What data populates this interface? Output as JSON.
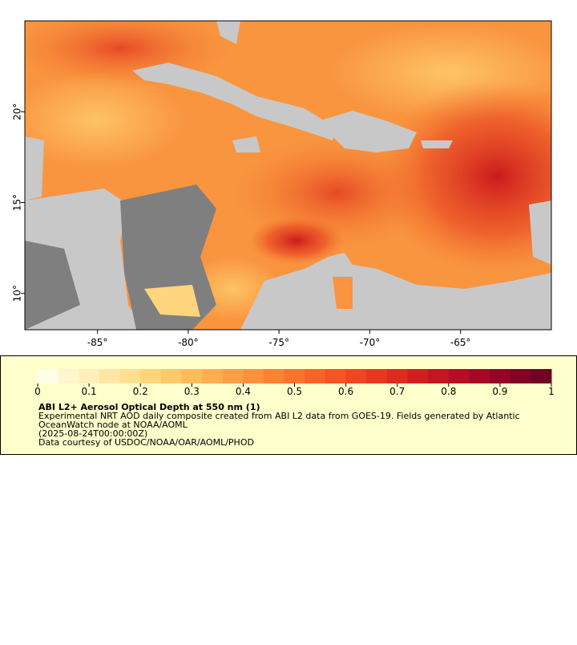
{
  "map": {
    "xlim": [
      -89,
      -60
    ],
    "ylim": [
      8,
      25
    ],
    "xticks": [
      {
        "value": -85,
        "label": "-85°"
      },
      {
        "value": -80,
        "label": "-80°"
      },
      {
        "value": -75,
        "label": "-75°"
      },
      {
        "value": -70,
        "label": "-70°"
      },
      {
        "value": -65,
        "label": "-65°"
      }
    ],
    "yticks": [
      {
        "value": 10,
        "label": "10°"
      },
      {
        "value": 15,
        "label": "15°"
      },
      {
        "value": 20,
        "label": "20°"
      }
    ]
  },
  "colorbar": {
    "range": [
      0,
      1
    ],
    "ticks": [
      0,
      0.1,
      0.2,
      0.3,
      0.4,
      0.5,
      0.6,
      0.7,
      0.8,
      0.9,
      1
    ],
    "colors": [
      "#fffee6",
      "#fff6cc",
      "#ffefb8",
      "#ffe7a3",
      "#fedf8f",
      "#fed57c",
      "#fec96b",
      "#febb5c",
      "#fead50",
      "#fd9f45",
      "#fd913c",
      "#fc8234",
      "#fb732d",
      "#f86428",
      "#f45524",
      "#ee4621",
      "#e6381f",
      "#dc2b1f",
      "#d11f20",
      "#c41522",
      "#b50d25",
      "#a50827",
      "#940527",
      "#820326",
      "#700324"
    ]
  },
  "legend": {
    "title": "ABI L2+ Aerosol Optical Depth at 550 nm (1)",
    "lines": [
      "Experimental NRT AOD daily composite created from ABI L2 data from GOES-19. Fields generated by Atlantic",
      "OceanWatch node at NOAA/AOML",
      "(2025-08-24T00:00:00Z)",
      "Data courtesy of USDOC/NOAA/OAR/AOML/PHOD"
    ]
  }
}
